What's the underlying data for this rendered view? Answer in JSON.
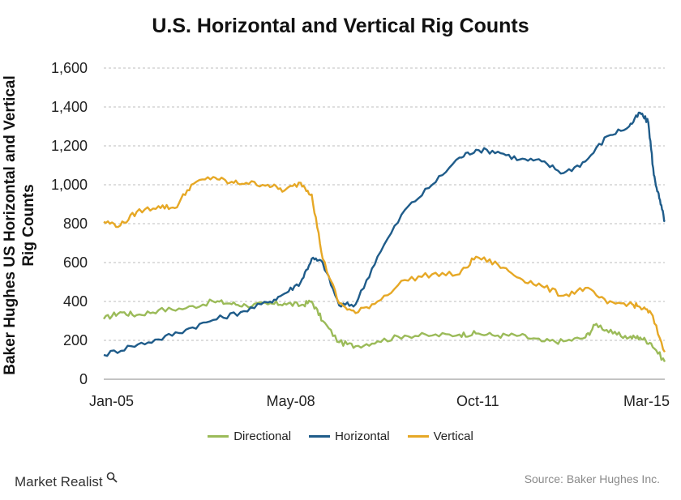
{
  "chart_data": {
    "type": "line",
    "title": "U.S. Horizontal and Vertical Rig Counts",
    "ylabel_lines": [
      "Baker Hughes US Horizontal and Vertical",
      "Rig Counts"
    ],
    "xlabel": "",
    "x_tick_labels": [
      "Jan-05",
      "May-08",
      "Oct-11",
      "Mar-15"
    ],
    "y_tick_labels": [
      "0",
      "200",
      "400",
      "600",
      "800",
      "1,000",
      "1,200",
      "1,400",
      "1,600"
    ],
    "ylim": [
      0,
      1600
    ],
    "x_range_years": [
      2005.0,
      2015.25
    ],
    "grid": "horizontal dashed",
    "legend_position": "bottom",
    "series": [
      {
        "name": "Directional",
        "color": "#9bbb59",
        "x": [
          2005.0,
          2005.3,
          2005.6,
          2006.0,
          2006.5,
          2007.0,
          2007.3,
          2007.6,
          2008.0,
          2008.3,
          2008.6,
          2008.8,
          2009.0,
          2009.3,
          2009.6,
          2010.0,
          2010.5,
          2011.0,
          2011.5,
          2011.8,
          2012.2,
          2012.6,
          2013.0,
          2013.4,
          2013.8,
          2014.0,
          2014.3,
          2014.6,
          2014.8,
          2015.0,
          2015.25
        ],
        "values": [
          310,
          345,
          330,
          355,
          365,
          400,
          390,
          380,
          385,
          390,
          380,
          400,
          300,
          190,
          170,
          195,
          225,
          225,
          230,
          235,
          225,
          225,
          195,
          195,
          215,
          285,
          235,
          215,
          215,
          185,
          90
        ]
      },
      {
        "name": "Horizontal",
        "color": "#1f5c8a",
        "x": [
          2005.0,
          2005.5,
          2006.0,
          2006.5,
          2007.0,
          2007.5,
          2008.0,
          2008.3,
          2008.6,
          2008.8,
          2009.0,
          2009.3,
          2009.6,
          2010.0,
          2010.5,
          2011.0,
          2011.5,
          2011.8,
          2012.2,
          2012.6,
          2013.0,
          2013.4,
          2013.8,
          2014.2,
          2014.6,
          2014.8,
          2014.95,
          2015.05,
          2015.15,
          2015.25
        ],
        "values": [
          125,
          170,
          205,
          255,
          305,
          345,
          395,
          440,
          500,
          620,
          600,
          380,
          385,
          630,
          870,
          1000,
          1140,
          1180,
          1170,
          1130,
          1120,
          1060,
          1120,
          1250,
          1300,
          1370,
          1320,
          1050,
          930,
          810
        ]
      },
      {
        "name": "Vertical",
        "color": "#e6a826",
        "x": [
          2005.0,
          2005.3,
          2005.6,
          2006.0,
          2006.3,
          2006.6,
          2007.0,
          2007.3,
          2007.6,
          2008.0,
          2008.3,
          2008.6,
          2008.8,
          2009.0,
          2009.3,
          2009.6,
          2010.0,
          2010.5,
          2011.0,
          2011.5,
          2011.8,
          2012.2,
          2012.6,
          2013.0,
          2013.4,
          2013.8,
          2014.2,
          2014.6,
          2014.8,
          2015.0,
          2015.25
        ],
        "values": [
          810,
          790,
          860,
          890,
          880,
          1000,
          1040,
          1010,
          1010,
          1000,
          970,
          1010,
          950,
          620,
          390,
          340,
          400,
          510,
          540,
          540,
          630,
          590,
          520,
          480,
          430,
          470,
          390,
          390,
          370,
          340,
          140
        ]
      }
    ]
  },
  "legend": {
    "items": [
      {
        "label": "Directional",
        "color": "#9bbb59"
      },
      {
        "label": "Horizontal",
        "color": "#1f5c8a"
      },
      {
        "label": "Vertical",
        "color": "#e6a826"
      }
    ]
  },
  "footer": {
    "brand": "Market Realist",
    "source": "Source: Baker Hughes Inc."
  }
}
